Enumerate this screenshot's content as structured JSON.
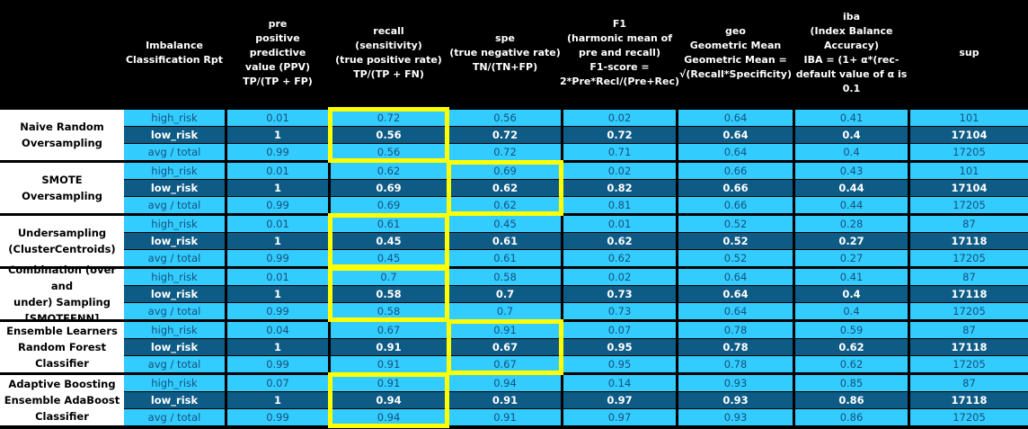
{
  "headers": [
    "Imbalance\nClassification Rpt",
    "pre\npositive predictive\nvalue (PPV)\nTP/(TP + FP)",
    "recall\n(sensitivity)\n(true positive rate)\nTP/(TP + FN)",
    "spe\n(true negative rate)\nTN/(TN+FP)",
    "F1\n(harmonic mean of\npre and recall)\nF1-score =\n2*Pre*Recl/(Pre+Rec)",
    "geo\nGeometric Mean\nGeometric Mean =\n√(Recall*Specificity)",
    "iba\n(Index Balance\nAccuracy)\nIBA = (1+ α*(rec-\ndefault value of α is\n0.1",
    "sup"
  ],
  "groups": [
    {
      "label": "Naive Random\nOversampling",
      "highlight": [
        "recall"
      ],
      "rows": [
        [
          "high_risk",
          "0.01",
          "0.72",
          "0.56",
          "0.02",
          "0.64",
          "0.41",
          "101"
        ],
        [
          "low_risk",
          "1",
          "0.56",
          "0.72",
          "0.72",
          "0.64",
          "0.4",
          "17104"
        ],
        [
          "avg / total",
          "0.99",
          "0.56",
          "0.72",
          "0.71",
          "0.64",
          "0.4",
          "17205"
        ]
      ]
    },
    {
      "label": "SMOTE Oversampling",
      "highlight": [
        "spe"
      ],
      "rows": [
        [
          "high_risk",
          "0.01",
          "0.62",
          "0.69",
          "0.02",
          "0.66",
          "0.43",
          "101"
        ],
        [
          "low_risk",
          "1",
          "0.69",
          "0.62",
          "0.82",
          "0.66",
          "0.44",
          "17104"
        ],
        [
          "avg / total",
          "0.99",
          "0.69",
          "0.62",
          "0.81",
          "0.66",
          "0.44",
          "17205"
        ]
      ]
    },
    {
      "label": "Undersampling\n(ClusterCentroids)",
      "highlight": [
        "recall"
      ],
      "rows": [
        [
          "high_risk",
          "0.01",
          "0.61",
          "0.45",
          "0.01",
          "0.52",
          "0.28",
          "87"
        ],
        [
          "low_risk",
          "1",
          "0.45",
          "0.61",
          "0.62",
          "0.52",
          "0.27",
          "17118"
        ],
        [
          "avg / total",
          "0.99",
          "0.45",
          "0.61",
          "0.62",
          "0.52",
          "0.27",
          "17205"
        ]
      ]
    },
    {
      "label": "Combination (over and\nunder) Sampling\n[SMOTEENN]",
      "highlight": [
        "recall"
      ],
      "rows": [
        [
          "high_risk",
          "0.01",
          "0.7",
          "0.58",
          "0.02",
          "0.64",
          "0.41",
          "87"
        ],
        [
          "low_risk",
          "1",
          "0.58",
          "0.7",
          "0.73",
          "0.64",
          "0.4",
          "17118"
        ],
        [
          "avg / total",
          "0.99",
          "0.58",
          "0.7",
          "0.73",
          "0.64",
          "0.4",
          "17205"
        ]
      ]
    },
    {
      "label": "Ensemble Learners\nRandom Forest Classifier",
      "highlight": [
        "spe"
      ],
      "rows": [
        [
          "high_risk",
          "0.04",
          "0.67",
          "0.91",
          "0.07",
          "0.78",
          "0.59",
          "87"
        ],
        [
          "low_risk",
          "1",
          "0.91",
          "0.67",
          "0.95",
          "0.78",
          "0.62",
          "17118"
        ],
        [
          "avg / total",
          "0.99",
          "0.91",
          "0.67",
          "0.95",
          "0.78",
          "0.62",
          "17205"
        ]
      ]
    },
    {
      "label": "Adaptive Boosting\nEnsemble AdaBoost\nClassifier",
      "highlight": [
        "recall"
      ],
      "rows": [
        [
          "high_risk",
          "0.07",
          "0.91",
          "0.94",
          "0.14",
          "0.93",
          "0.85",
          "87"
        ],
        [
          "low_risk",
          "1",
          "0.94",
          "0.91",
          "0.97",
          "0.93",
          "0.86",
          "17118"
        ],
        [
          "avg / total",
          "0.99",
          "0.94",
          "0.91",
          "0.97",
          "0.93",
          "0.86",
          "17205"
        ]
      ]
    }
  ],
  "colors": {
    "light_row": "#33ccff",
    "dark_row": "#0e5b86",
    "highlight": "#ffff00"
  }
}
